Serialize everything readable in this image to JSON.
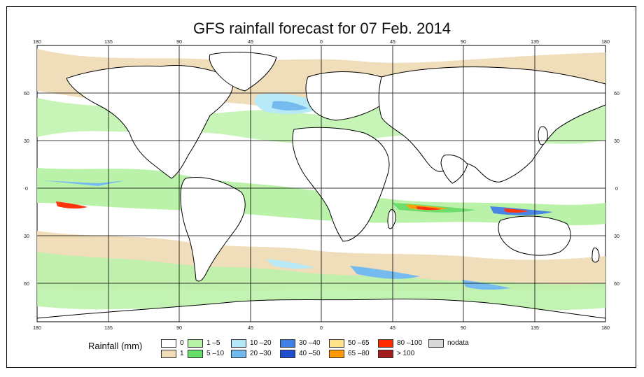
{
  "title": "GFS rainfall forecast for 07 Feb. 2014",
  "axes": {
    "lon_ticks_top": [
      "180",
      "135",
      "90",
      "45",
      "0",
      "45",
      "90",
      "135",
      "180"
    ],
    "lon_ticks_bottom": [
      "180",
      "135",
      "90",
      "45",
      "0",
      "45",
      "90",
      "135",
      "180"
    ],
    "lat_ticks_left": [
      "60",
      "30",
      "0",
      "30",
      "60"
    ],
    "lat_ticks_right": [
      "60",
      "30",
      "0",
      "30",
      "60"
    ]
  },
  "legend": {
    "title": "Rainfall (mm)",
    "classes": [
      {
        "label": "0",
        "color": "#ffffff"
      },
      {
        "label": "1",
        "color": "#f0dcb6"
      },
      {
        "label": "1 –5",
        "color": "#b8f2a6"
      },
      {
        "label": "5 –10",
        "color": "#66dd66"
      },
      {
        "label": "10 –20",
        "color": "#b4e8f6"
      },
      {
        "label": "20 –30",
        "color": "#6fb8f0"
      },
      {
        "label": "30 –40",
        "color": "#3f7fe6"
      },
      {
        "label": "40 –50",
        "color": "#1f4fd0"
      },
      {
        "label": "50 –65",
        "color": "#ffe28a"
      },
      {
        "label": "65 –80",
        "color": "#ff9a00"
      },
      {
        "label": "80 –100",
        "color": "#ff2a00"
      },
      {
        "label": "> 100",
        "color": "#a51c1c"
      },
      {
        "label": "nodata",
        "color": "#d9d9d9"
      }
    ]
  }
}
